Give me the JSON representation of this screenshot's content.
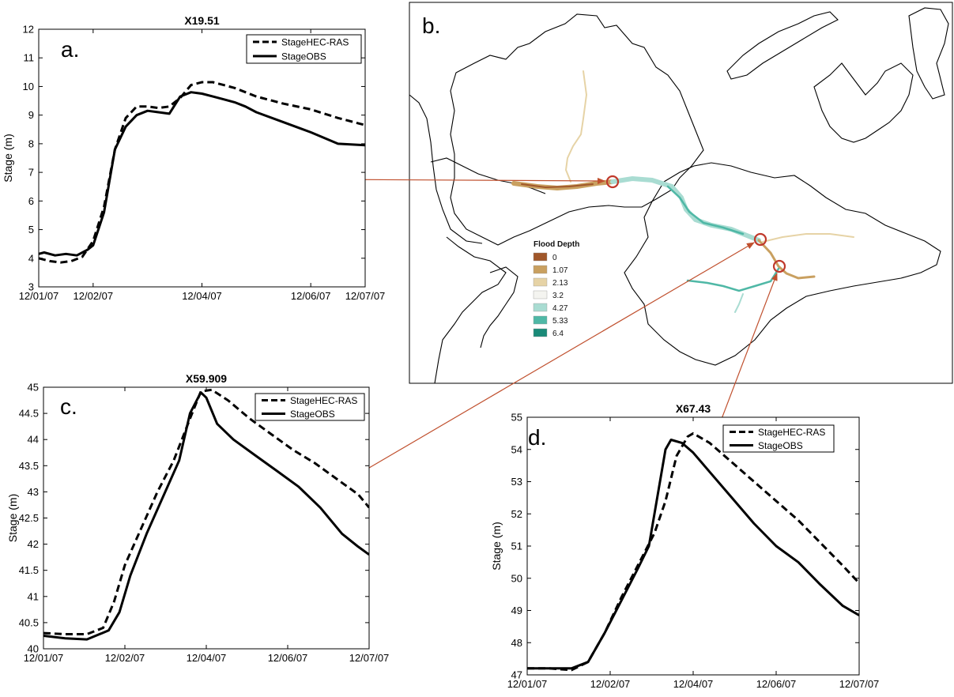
{
  "colors": {
    "connector": "#c0502e",
    "marker": "#c0392b",
    "hec_line": "#000000",
    "obs_line": "#000000"
  },
  "legend": {
    "hec_label": "StageHEC-RAS",
    "obs_label": "StageOBS"
  },
  "chart_data": [
    {
      "id": "a",
      "panel_letter": "a.",
      "type": "line",
      "title": "X19.51",
      "xlabel": "",
      "ylabel": "Stage (m)",
      "ylim": [
        3,
        12
      ],
      "yticks": [
        3,
        4,
        5,
        6,
        7,
        8,
        9,
        10,
        11,
        12
      ],
      "xlim": [
        0,
        6
      ],
      "xtick_values": [
        0,
        1,
        3,
        5,
        6
      ],
      "xtick_labels": [
        "12/01/07",
        "12/02/07",
        "12/04/07",
        "12/06/07",
        "12/07/07"
      ],
      "legend_position": "top-right",
      "series": [
        {
          "name": "StageHEC-RAS",
          "style": "dashed",
          "x": [
            0,
            0.2,
            0.4,
            0.6,
            0.8,
            1.0,
            1.2,
            1.4,
            1.6,
            1.8,
            2.0,
            2.2,
            2.4,
            2.6,
            2.8,
            3.0,
            3.2,
            3.4,
            3.6,
            3.8,
            4.0,
            4.5,
            5.0,
            5.5,
            6.0
          ],
          "values": [
            4.0,
            3.9,
            3.85,
            3.9,
            4.05,
            4.6,
            5.8,
            7.8,
            8.9,
            9.3,
            9.3,
            9.25,
            9.3,
            9.6,
            10.05,
            10.15,
            10.15,
            10.05,
            9.95,
            9.8,
            9.65,
            9.4,
            9.2,
            8.9,
            8.65
          ]
        },
        {
          "name": "StageOBS",
          "style": "solid",
          "x": [
            0,
            0.1,
            0.3,
            0.5,
            0.7,
            0.9,
            1.0,
            1.2,
            1.4,
            1.6,
            1.8,
            2.0,
            2.2,
            2.4,
            2.6,
            2.8,
            3.0,
            3.2,
            3.4,
            3.6,
            3.8,
            4.0,
            4.5,
            5.0,
            5.5,
            6.0
          ],
          "values": [
            4.15,
            4.2,
            4.1,
            4.15,
            4.1,
            4.3,
            4.45,
            5.6,
            7.8,
            8.6,
            9.0,
            9.15,
            9.1,
            9.05,
            9.65,
            9.8,
            9.75,
            9.65,
            9.55,
            9.45,
            9.3,
            9.1,
            8.75,
            8.4,
            8.0,
            7.95
          ]
        }
      ]
    },
    {
      "id": "c",
      "panel_letter": "c.",
      "type": "line",
      "title": "X59.909",
      "xlabel": "",
      "ylabel": "Stage (m)",
      "ylim": [
        40,
        45
      ],
      "yticks": [
        40,
        40.5,
        41,
        41.5,
        42,
        42.5,
        43,
        43.5,
        44,
        44.5,
        45
      ],
      "xlim": [
        0,
        6
      ],
      "xtick_values": [
        0,
        1.5,
        3,
        4.5,
        6
      ],
      "xtick_labels": [
        "12/01/07",
        "12/02/07",
        "12/04/07",
        "12/06/07",
        "12/07/07"
      ],
      "legend_position": "top-right",
      "series": [
        {
          "name": "StageHEC-RAS",
          "style": "dashed",
          "x": [
            0,
            0.4,
            0.8,
            1.1,
            1.3,
            1.5,
            1.8,
            2.1,
            2.4,
            2.7,
            2.9,
            3.1,
            3.4,
            3.8,
            4.2,
            4.6,
            5.0,
            5.4,
            5.8,
            6.0
          ],
          "values": [
            40.3,
            40.28,
            40.28,
            40.4,
            40.9,
            41.6,
            42.3,
            43.0,
            43.6,
            44.4,
            44.92,
            44.95,
            44.75,
            44.4,
            44.1,
            43.8,
            43.55,
            43.25,
            42.95,
            42.7
          ]
        },
        {
          "name": "StageOBS",
          "style": "solid",
          "x": [
            0,
            0.4,
            0.8,
            1.2,
            1.4,
            1.6,
            1.9,
            2.2,
            2.5,
            2.7,
            2.9,
            3.0,
            3.2,
            3.5,
            3.9,
            4.3,
            4.7,
            5.1,
            5.5,
            5.8,
            6.0
          ],
          "values": [
            40.25,
            40.2,
            40.18,
            40.35,
            40.7,
            41.4,
            42.2,
            42.9,
            43.6,
            44.5,
            44.9,
            44.8,
            44.3,
            44.0,
            43.7,
            43.4,
            43.1,
            42.7,
            42.2,
            41.95,
            41.8
          ]
        }
      ]
    },
    {
      "id": "d",
      "panel_letter": "d.",
      "type": "line",
      "title": "X67.43",
      "xlabel": "",
      "ylabel": "Stage (m)",
      "ylim": [
        47,
        55
      ],
      "yticks": [
        47,
        48,
        49,
        50,
        51,
        52,
        53,
        54,
        55
      ],
      "xlim": [
        0,
        6
      ],
      "xtick_values": [
        0,
        1.5,
        3,
        4.5,
        6
      ],
      "xtick_labels": [
        "12/01/07",
        "12/02/07",
        "12/04/07",
        "12/06/07",
        "12/07/07"
      ],
      "legend_position": "top-right",
      "series": [
        {
          "name": "StageHEC-RAS",
          "style": "dashed",
          "x": [
            0,
            0.4,
            0.8,
            1.1,
            1.4,
            1.7,
            2.0,
            2.3,
            2.5,
            2.7,
            2.9,
            3.0,
            3.3,
            3.7,
            4.1,
            4.5,
            4.9,
            5.3,
            5.7,
            6.0
          ],
          "values": [
            47.2,
            47.2,
            47.15,
            47.4,
            48.3,
            49.4,
            50.4,
            51.4,
            52.4,
            53.8,
            54.4,
            54.5,
            54.2,
            53.6,
            53.0,
            52.4,
            51.8,
            51.1,
            50.4,
            49.85
          ]
        },
        {
          "name": "StageOBS",
          "style": "solid",
          "x": [
            0,
            0.4,
            0.8,
            1.1,
            1.4,
            1.7,
            2.0,
            2.2,
            2.35,
            2.5,
            2.6,
            2.8,
            3.0,
            3.3,
            3.7,
            4.1,
            4.5,
            4.9,
            5.3,
            5.7,
            6.0
          ],
          "values": [
            47.2,
            47.2,
            47.2,
            47.4,
            48.3,
            49.3,
            50.3,
            51.0,
            52.5,
            54.0,
            54.3,
            54.2,
            53.9,
            53.3,
            52.5,
            51.7,
            51.0,
            50.5,
            49.8,
            49.15,
            48.85
          ]
        }
      ]
    }
  ],
  "map": {
    "panel_letter": "b.",
    "legend_title": "Flood Depth",
    "legend_entries": [
      {
        "label": "0",
        "color": "#a0572a"
      },
      {
        "label": "1.07",
        "color": "#c9a060"
      },
      {
        "label": "2.13",
        "color": "#e6d3a6"
      },
      {
        "label": "3.2",
        "color": "#f4f4f0"
      },
      {
        "label": "4.27",
        "color": "#a9dcd2"
      },
      {
        "label": "5.33",
        "color": "#4fb8a6"
      },
      {
        "label": "6.4",
        "color": "#1a8a78"
      }
    ]
  }
}
